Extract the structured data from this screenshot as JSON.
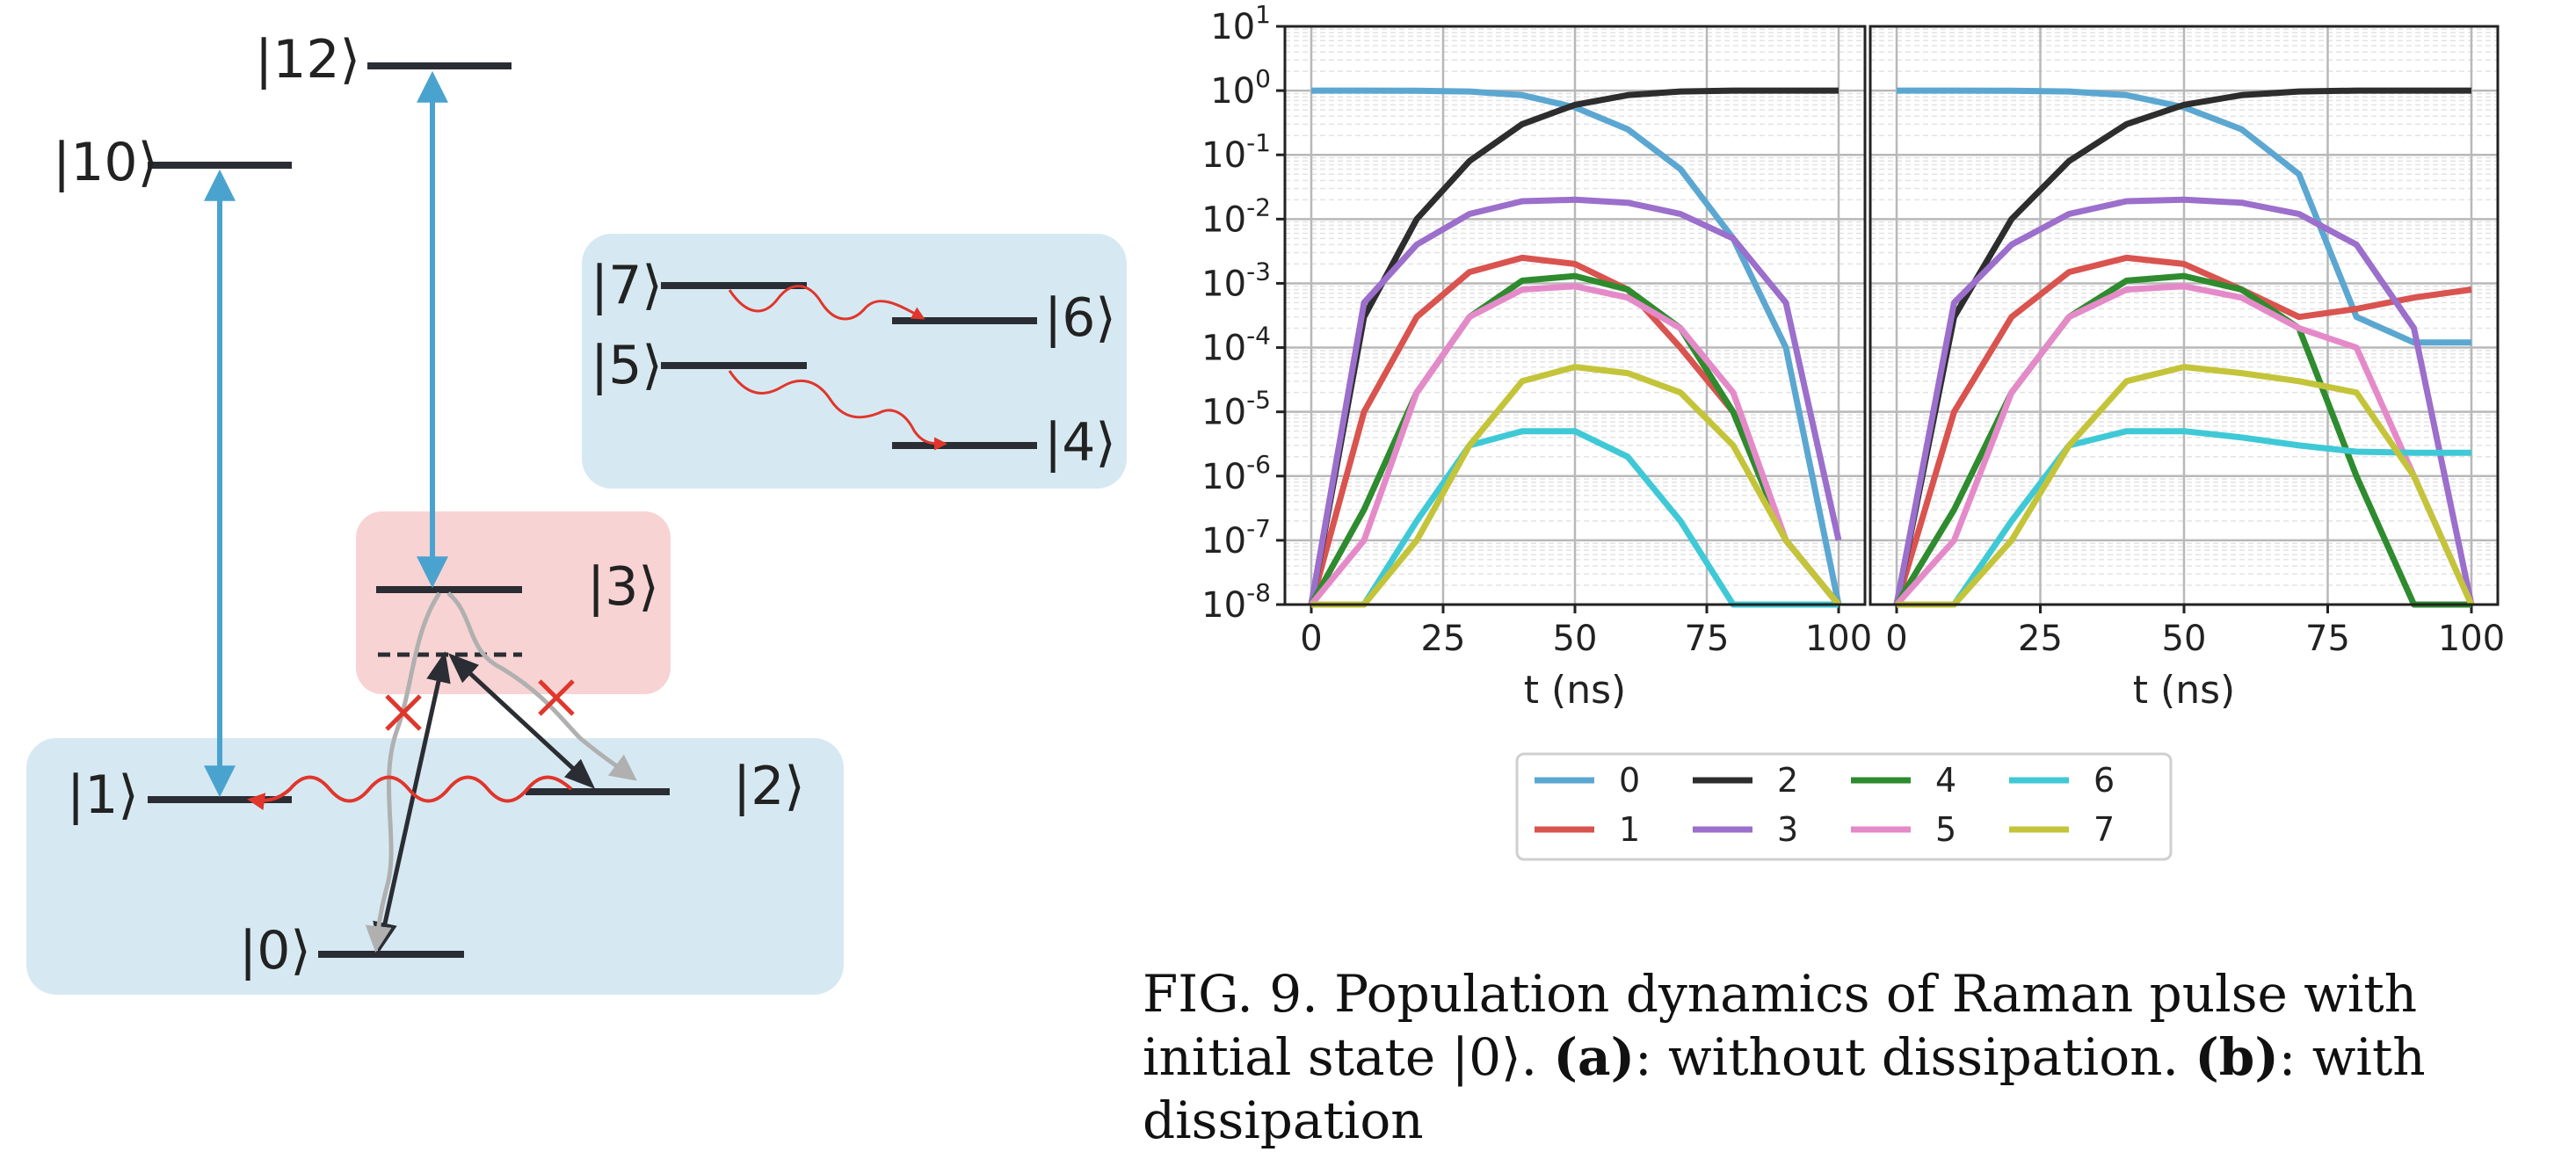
{
  "figure": {
    "caption": {
      "prefix": "FIG. 9.  Population dynamics of Raman pulse with initial state |0⟩. ",
      "a_tag": "(a)",
      "a_text": ": without dissipation. ",
      "b_tag": "(b)",
      "b_text": ": with dissipation"
    }
  },
  "diagram": {
    "levels": [
      "|0⟩",
      "|1⟩",
      "|2⟩",
      "|3⟩",
      "|4⟩",
      "|5⟩",
      "|6⟩",
      "|7⟩",
      "|10⟩",
      "|12⟩"
    ],
    "colors": {
      "ground_box": "#d6e9f2",
      "decay_box": "#d6e9f2",
      "excited_box": "#f8d3d3",
      "pump_arrow": "#4aa3cf",
      "decay_wavy": "#e0362c",
      "blocked_mark": "#e0362c",
      "gray_path": "#b0b0b0",
      "level_line": "#2a2d33"
    }
  },
  "chart_data": [
    {
      "type": "line",
      "panel": "left",
      "xlabel": "t (ns)",
      "ylabel": "",
      "xlim": [
        0,
        100
      ],
      "ylim": [
        1e-08,
        10
      ],
      "yscale": "log",
      "grid": true,
      "x_ticks": [
        "0",
        "25",
        "50",
        "75",
        "100"
      ],
      "y_ticks": [
        "10^-8",
        "10^-7",
        "10^-6",
        "10^-5",
        "10^-4",
        "10^-3",
        "10^-2",
        "10^-1",
        "10^0",
        "10^1"
      ],
      "x": [
        0,
        10,
        20,
        30,
        40,
        50,
        60,
        70,
        80,
        90,
        100
      ],
      "series": [
        {
          "name": "0",
          "color": "#5ba7d1",
          "values": [
            1,
            1,
            0.995,
            0.97,
            0.85,
            0.55,
            0.25,
            0.06,
            0.005,
            0.0001,
            1e-08
          ]
        },
        {
          "name": "1",
          "color": "#d9534f",
          "values": [
            1e-08,
            1e-05,
            0.0003,
            0.0015,
            0.0025,
            0.002,
            0.0008,
            0.0001,
            1e-05,
            1e-07,
            1e-08
          ]
        },
        {
          "name": "2",
          "color": "#2d2d2d",
          "values": [
            1e-08,
            0.0003,
            0.01,
            0.08,
            0.3,
            0.6,
            0.85,
            0.97,
            1,
            1,
            1
          ]
        },
        {
          "name": "3",
          "color": "#9b6fcb",
          "values": [
            1e-08,
            0.0005,
            0.004,
            0.012,
            0.019,
            0.02,
            0.018,
            0.012,
            0.005,
            0.0005,
            1e-07
          ]
        },
        {
          "name": "4",
          "color": "#2e8b2e",
          "values": [
            1e-08,
            3e-07,
            2e-05,
            0.0003,
            0.0011,
            0.0013,
            0.0008,
            0.0002,
            1e-05,
            1e-07,
            1e-08
          ]
        },
        {
          "name": "5",
          "color": "#e58ac9",
          "values": [
            1e-08,
            1e-07,
            2e-05,
            0.0003,
            0.0008,
            0.0009,
            0.0006,
            0.0002,
            2e-05,
            1e-07,
            1e-08
          ]
        },
        {
          "name": "6",
          "color": "#3fc9d6",
          "values": [
            1e-08,
            1e-08,
            2e-07,
            3e-06,
            5e-06,
            5e-06,
            2e-06,
            2e-07,
            1e-08,
            1e-08,
            1e-08
          ]
        },
        {
          "name": "7",
          "color": "#c4c43a",
          "values": [
            1e-08,
            1e-08,
            1e-07,
            3e-06,
            3e-05,
            5e-05,
            4e-05,
            2e-05,
            3e-06,
            1e-07,
            1e-08
          ]
        }
      ]
    },
    {
      "type": "line",
      "panel": "right",
      "xlabel": "t (ns)",
      "ylabel": "",
      "xlim": [
        0,
        100
      ],
      "ylim": [
        1e-08,
        10
      ],
      "yscale": "log",
      "grid": true,
      "x_ticks": [
        "0",
        "25",
        "50",
        "75",
        "100"
      ],
      "x": [
        0,
        10,
        20,
        30,
        40,
        50,
        60,
        70,
        80,
        90,
        100
      ],
      "series": [
        {
          "name": "0",
          "color": "#5ba7d1",
          "values": [
            1,
            1,
            0.995,
            0.97,
            0.85,
            0.55,
            0.25,
            0.05,
            0.0003,
            0.00012,
            0.00012
          ]
        },
        {
          "name": "1",
          "color": "#d9534f",
          "values": [
            1e-08,
            1e-05,
            0.0003,
            0.0015,
            0.0025,
            0.002,
            0.0008,
            0.0003,
            0.0004,
            0.0006,
            0.0008
          ]
        },
        {
          "name": "2",
          "color": "#2d2d2d",
          "values": [
            1e-08,
            0.0003,
            0.01,
            0.08,
            0.3,
            0.6,
            0.85,
            0.97,
            1,
            1,
            1
          ]
        },
        {
          "name": "3",
          "color": "#9b6fcb",
          "values": [
            1e-08,
            0.0005,
            0.004,
            0.012,
            0.019,
            0.02,
            0.018,
            0.012,
            0.004,
            0.0002,
            1e-08
          ]
        },
        {
          "name": "4",
          "color": "#2e8b2e",
          "values": [
            1e-08,
            3e-07,
            2e-05,
            0.0003,
            0.0011,
            0.0013,
            0.0008,
            0.0002,
            1e-06,
            1e-08,
            1e-08
          ]
        },
        {
          "name": "5",
          "color": "#e58ac9",
          "values": [
            1e-08,
            1e-07,
            2e-05,
            0.0003,
            0.0008,
            0.0009,
            0.0006,
            0.0002,
            0.0001,
            1e-06,
            1e-08
          ]
        },
        {
          "name": "6",
          "color": "#3fc9d6",
          "values": [
            1e-08,
            1e-08,
            2e-07,
            3e-06,
            5e-06,
            5e-06,
            4e-06,
            3e-06,
            2.4e-06,
            2.3e-06,
            2.3e-06
          ]
        },
        {
          "name": "7",
          "color": "#c4c43a",
          "values": [
            1e-08,
            1e-08,
            1e-07,
            3e-06,
            3e-05,
            5e-05,
            4e-05,
            3e-05,
            2e-05,
            1e-06,
            1e-08
          ]
        }
      ]
    }
  ],
  "legend": {
    "order": [
      "0",
      "2",
      "4",
      "6",
      "1",
      "3",
      "5",
      "7"
    ],
    "colors": [
      "#5ba7d1",
      "#2d2d2d",
      "#2e8b2e",
      "#3fc9d6",
      "#d9534f",
      "#9b6fcb",
      "#e58ac9",
      "#c4c43a"
    ]
  }
}
